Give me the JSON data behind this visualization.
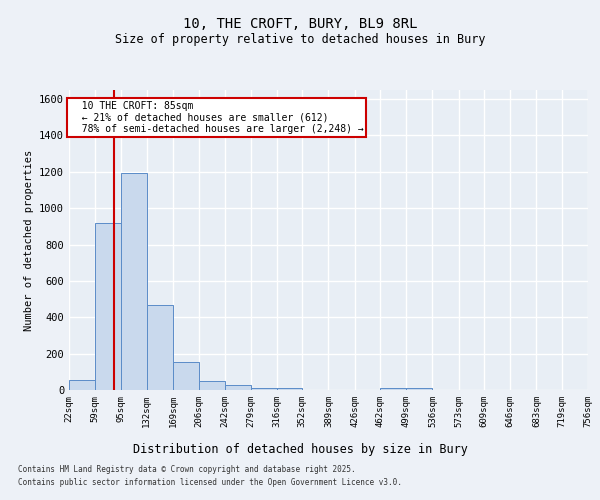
{
  "title1": "10, THE CROFT, BURY, BL9 8RL",
  "title2": "Size of property relative to detached houses in Bury",
  "xlabel": "Distribution of detached houses by size in Bury",
  "ylabel": "Number of detached properties",
  "annotation_title": "10 THE CROFT: 85sqm",
  "annotation_line1": "← 21% of detached houses are smaller (612)",
  "annotation_line2": "78% of semi-detached houses are larger (2,248) →",
  "footnote1": "Contains HM Land Registry data © Crown copyright and database right 2025.",
  "footnote2": "Contains public sector information licensed under the Open Government Licence v3.0.",
  "bar_edges": [
    22,
    59,
    95,
    132,
    169,
    206,
    242,
    279,
    316,
    352,
    389,
    426,
    462,
    499,
    536,
    573,
    609,
    646,
    683,
    719,
    756
  ],
  "bar_heights": [
    55,
    920,
    1195,
    465,
    155,
    50,
    25,
    10,
    10,
    0,
    0,
    0,
    10,
    10,
    0,
    0,
    0,
    0,
    0,
    0
  ],
  "bar_color": "#c9d9ed",
  "bar_edgecolor": "#5b8cc8",
  "vline_x": 85,
  "vline_color": "#cc0000",
  "ylim": [
    0,
    1650
  ],
  "yticks": [
    0,
    200,
    400,
    600,
    800,
    1000,
    1200,
    1400,
    1600
  ],
  "bg_color": "#e8eef5",
  "grid_color": "#ffffff",
  "annotation_box_color": "#cc0000",
  "fig_bg_color": "#edf1f7",
  "title1_fontsize": 10,
  "title2_fontsize": 8.5,
  "ylabel_fontsize": 7.5,
  "xlabel_fontsize": 8.5,
  "tick_fontsize": 6.5,
  "ytick_fontsize": 7.5,
  "footnote_fontsize": 5.5
}
